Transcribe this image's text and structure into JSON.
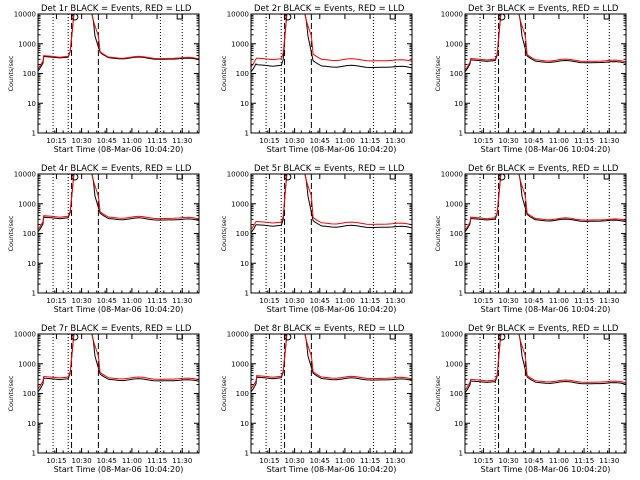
{
  "chart_data": {
    "type": "line",
    "y_scale": "log",
    "ylim": [
      1,
      10000
    ],
    "y_tick_labels": [
      "1",
      "10",
      "100",
      "1000",
      "10000"
    ],
    "x_tick_labels": [
      "10:15",
      "10:30",
      "10:45",
      "11:00",
      "11:15",
      "11:30"
    ],
    "xlabel": "Start Time (08-Mar-06 10:04:20)",
    "ylabel": "Counts/sec",
    "legend_text": "BLACK = Events, RED = LLD",
    "series_colors": {
      "Events": "#000000",
      "LLD": "#ff0000"
    },
    "x_unit": "minutes after 10:04:20",
    "x_range": [
      0,
      96
    ],
    "x_ticks": [
      11,
      26,
      41,
      56,
      71,
      86
    ],
    "dotted_lines_x": [
      9,
      18,
      73,
      86
    ],
    "dashed_lines_x": [
      20,
      36
    ],
    "panels": [
      {
        "title": "Det 1r",
        "events_plateau": 340,
        "lld_plateau": 360,
        "events_start": 160,
        "lld_start": 190
      },
      {
        "title": "Det 2r",
        "events_plateau": 180,
        "lld_plateau": 300,
        "events_start": 150,
        "lld_start": 220
      },
      {
        "title": "Det 3r",
        "events_plateau": 260,
        "lld_plateau": 290,
        "events_start": 150,
        "lld_start": 170
      },
      {
        "title": "Det 4r",
        "events_plateau": 320,
        "lld_plateau": 360,
        "events_start": 150,
        "lld_start": 180
      },
      {
        "title": "Det 5r",
        "events_plateau": 180,
        "lld_plateau": 230,
        "events_start": 140,
        "lld_start": 180
      },
      {
        "title": "Det 6r",
        "events_plateau": 290,
        "lld_plateau": 320,
        "events_start": 150,
        "lld_start": 170
      },
      {
        "title": "Det 7r",
        "events_plateau": 300,
        "lld_plateau": 340,
        "events_start": 150,
        "lld_start": 190
      },
      {
        "title": "Det 8r",
        "events_plateau": 320,
        "lld_plateau": 360,
        "events_start": 150,
        "lld_start": 190
      },
      {
        "title": "Det 9r",
        "events_plateau": 240,
        "lld_plateau": 270,
        "events_start": 140,
        "lld_start": 170
      }
    ]
  }
}
